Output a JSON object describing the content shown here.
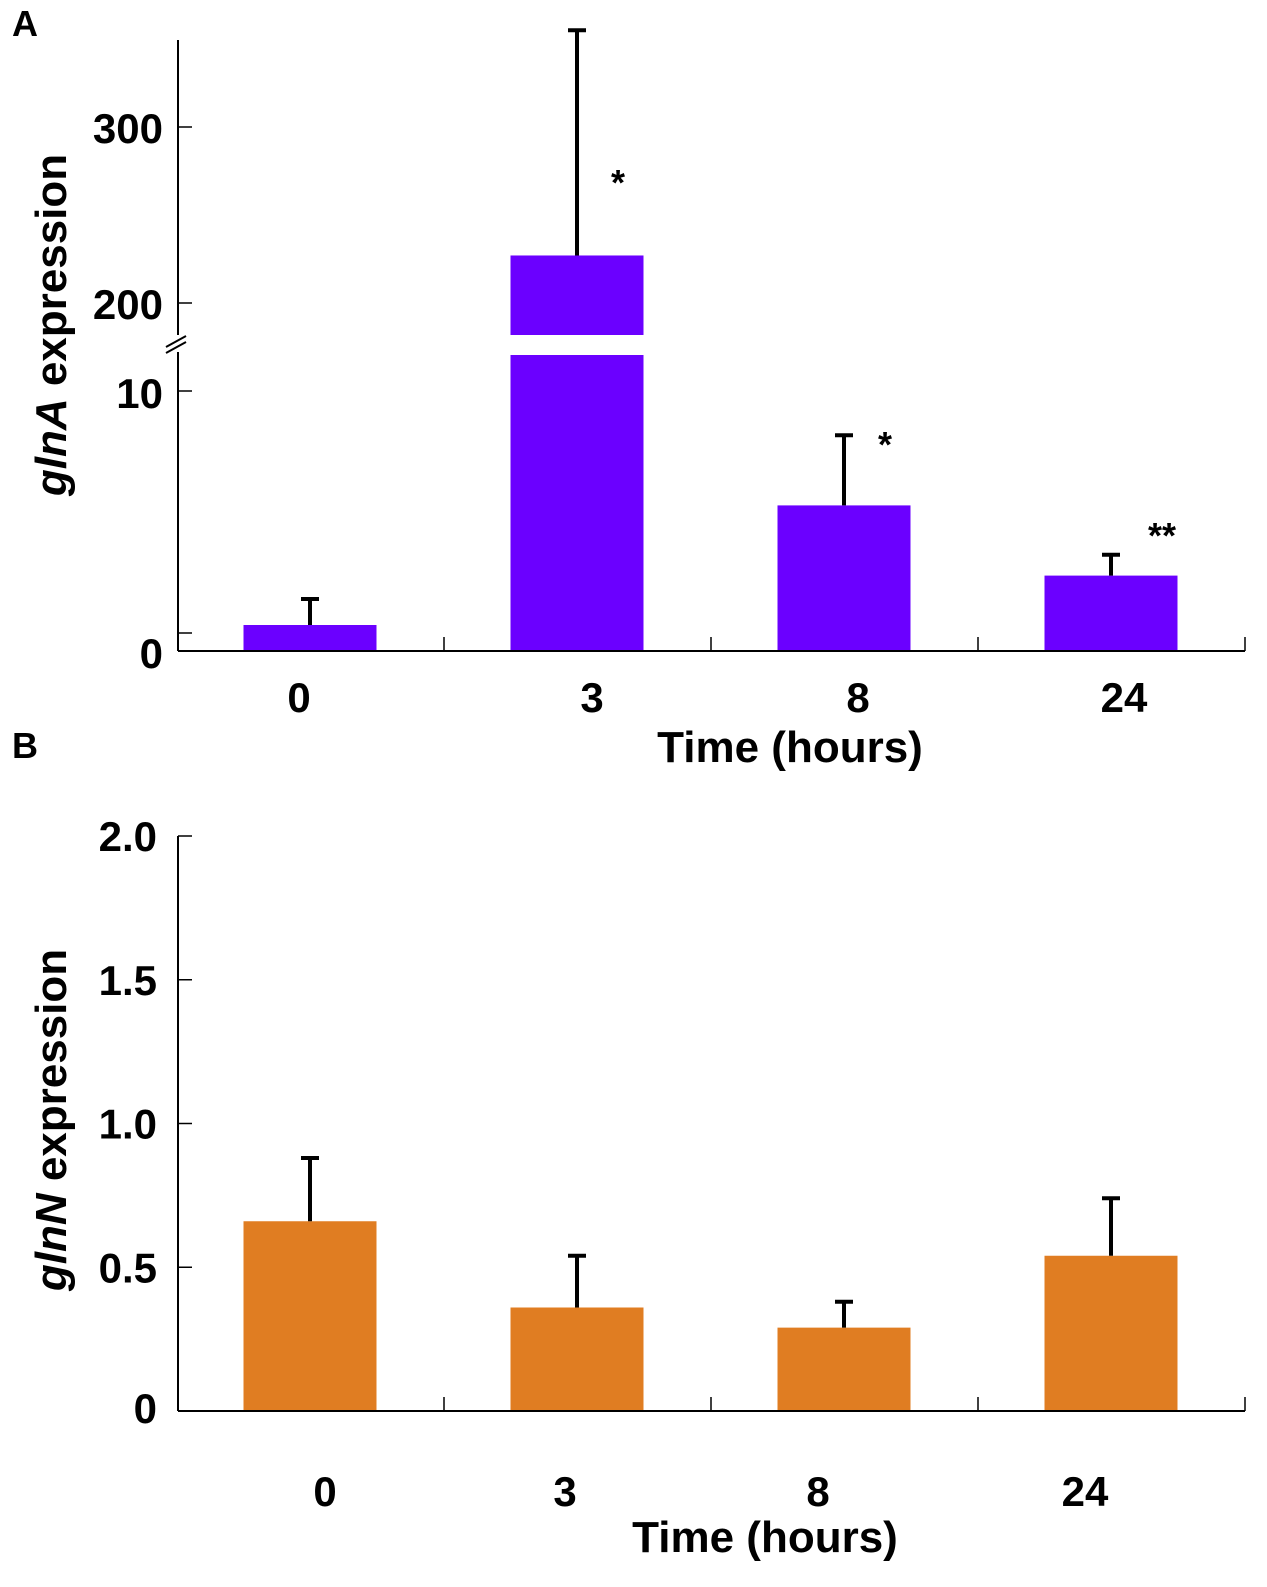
{
  "chart_data": [
    {
      "panel": "A",
      "type": "bar",
      "gene": "glnA",
      "ylabel_italic": "glnA",
      "ylabel_rest": " expression",
      "xlabel": "Time (hours)",
      "categories": [
        "0",
        "3",
        "8",
        "24"
      ],
      "values": [
        1,
        227,
        5.6,
        2.9
      ],
      "errors": [
        1.0,
        128,
        2.7,
        0.8
      ],
      "significance": [
        "",
        "*",
        "*",
        "**"
      ],
      "axis_break": {
        "lower_range": [
          0,
          10.5
        ],
        "upper_range": [
          180,
          350
        ]
      },
      "yticks_lower": [
        {
          "value": 0,
          "label": "0"
        },
        {
          "value": 10,
          "label": "10"
        }
      ],
      "yticks_upper": [
        {
          "value": 200,
          "label": "200"
        },
        {
          "value": 300,
          "label": "300"
        }
      ],
      "bar_color": "#6B00FF"
    },
    {
      "panel": "B",
      "type": "bar",
      "gene": "glnN",
      "ylabel_italic": "glnN",
      "ylabel_rest": " expression",
      "xlabel": "Time (hours)",
      "categories": [
        "0",
        "3",
        "8",
        "24"
      ],
      "values": [
        0.66,
        0.36,
        0.29,
        0.54
      ],
      "errors": [
        0.22,
        0.18,
        0.09,
        0.2
      ],
      "ylim": [
        0,
        2.0
      ],
      "yticks": [
        {
          "value": 0,
          "label": "0"
        },
        {
          "value": 0.5,
          "label": "0.5"
        },
        {
          "value": 1.0,
          "label": "1.0"
        },
        {
          "value": 1.5,
          "label": "1.5"
        },
        {
          "value": 2.0,
          "label": "2.0"
        }
      ],
      "bar_color": "#E07D22"
    }
  ]
}
